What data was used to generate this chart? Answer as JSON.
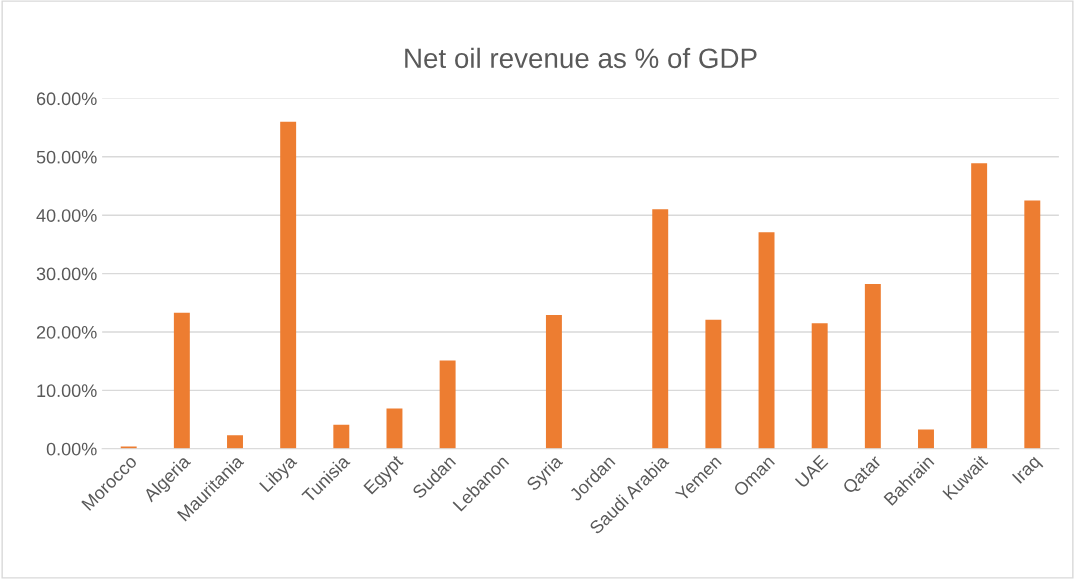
{
  "chart_data": {
    "type": "bar",
    "title": "Net oil revenue as % of GDP",
    "categories": [
      "Morocco",
      "Algeria",
      "Mauritania",
      "Libya",
      "Tunisia",
      "Egypt",
      "Sudan",
      "Lebanon",
      "Syria",
      "Jordan",
      "Saudi Arabia",
      "Yemen",
      "Oman",
      "UAE",
      "Qatar",
      "Bahrain",
      "Kuwait",
      "Iraq"
    ],
    "values": [
      0.4,
      23.3,
      2.3,
      56.0,
      4.1,
      6.9,
      15.1,
      0,
      22.9,
      0,
      41.0,
      22.1,
      37.1,
      21.5,
      28.2,
      3.3,
      48.9,
      42.5
    ],
    "color": "#ed7d31",
    "ylim": [
      0,
      60
    ],
    "yticks": [
      {
        "value": 0,
        "label": "0.00%"
      },
      {
        "value": 10,
        "label": "10.00%"
      },
      {
        "value": 20,
        "label": "20.00%"
      },
      {
        "value": 30,
        "label": "30.00%"
      },
      {
        "value": 40,
        "label": "40.00%"
      },
      {
        "value": 50,
        "label": "50.00%"
      },
      {
        "value": 60,
        "label": "60.00%"
      }
    ],
    "grid": "y",
    "legend": false
  }
}
